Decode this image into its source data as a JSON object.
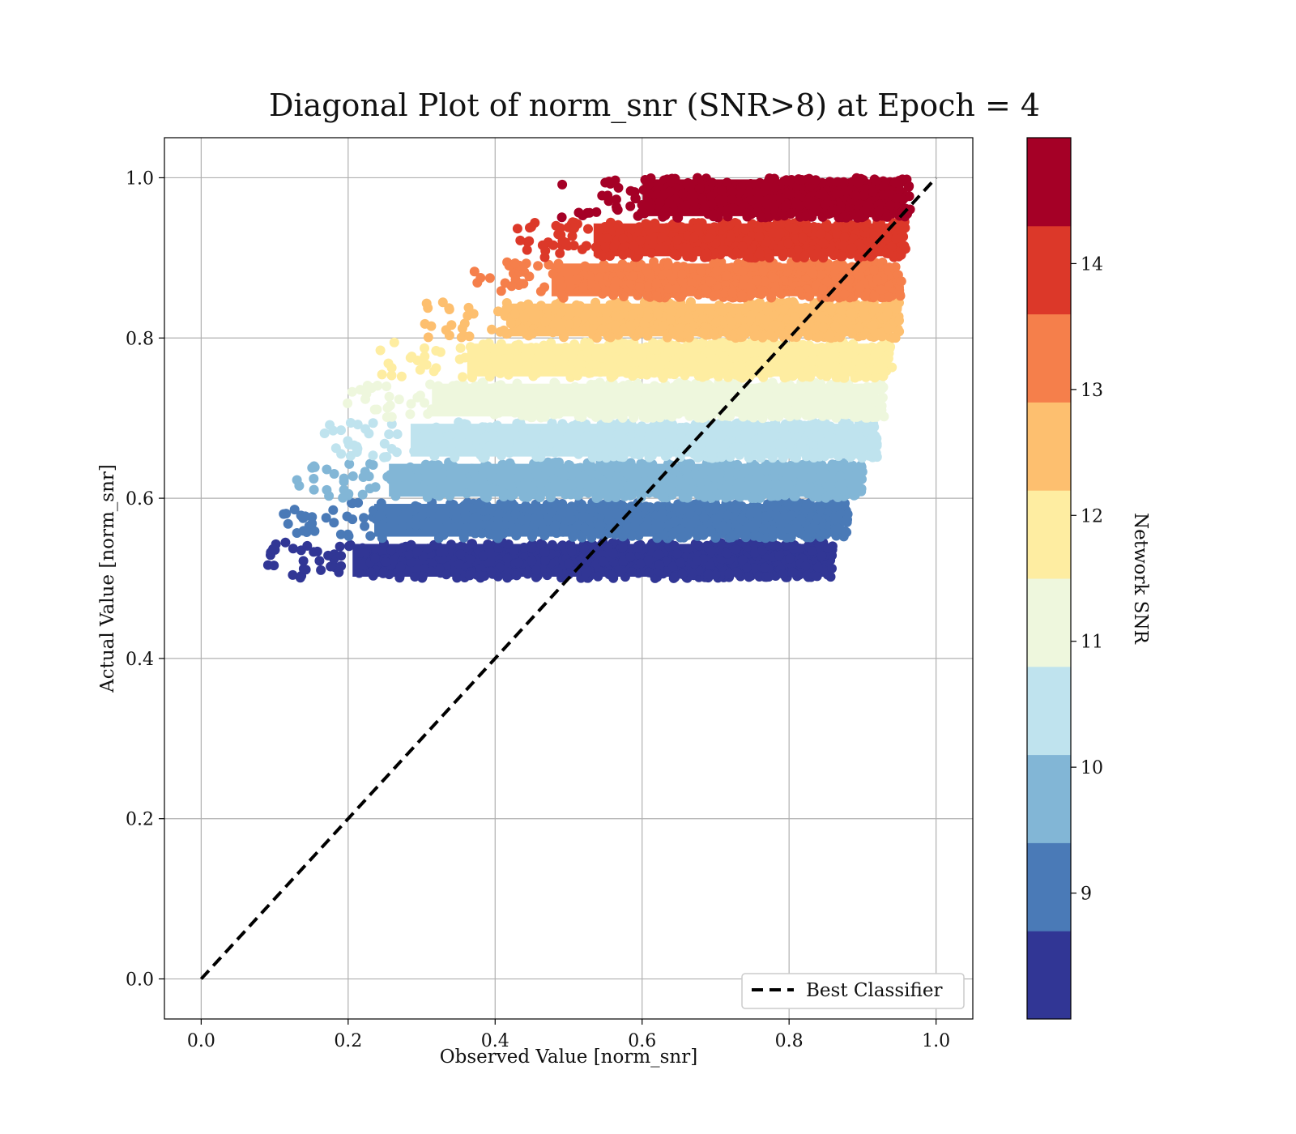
{
  "chart_data": {
    "type": "scatter",
    "title": "Diagonal Plot of norm_snr (SNR>8) at Epoch = 4",
    "xlabel": "Observed Value [norm_snr]",
    "ylabel": "Actual Value [norm_snr]",
    "xlim": [
      -0.05,
      1.05
    ],
    "ylim": [
      -0.05,
      1.05
    ],
    "x_ticks": [
      "0.0",
      "0.2",
      "0.4",
      "0.6",
      "0.8",
      "1.0"
    ],
    "y_ticks": [
      "0.0",
      "0.2",
      "0.4",
      "0.6",
      "0.8",
      "1.0"
    ],
    "grid": true,
    "legend": {
      "placement": "lower-right",
      "entries": [
        "Best Classifier"
      ]
    },
    "reference_line": {
      "name": "Best Classifier",
      "style": "dashed",
      "color": "#000000",
      "from": [
        0.0,
        0.0
      ],
      "to": [
        1.0,
        1.0
      ]
    },
    "colorbar": {
      "label": "Network SNR",
      "range": [
        8,
        15
      ],
      "tick_labels": [
        "9",
        "10",
        "11",
        "12",
        "13",
        "14"
      ],
      "colormap": "RdYlBu_r",
      "colors": [
        "#313695",
        "#4a7ab7",
        "#82b6d6",
        "#bfe3ee",
        "#eef7dd",
        "#feeda1",
        "#fdbf6f",
        "#f57f4b",
        "#dc3829",
        "#a50026"
      ]
    },
    "bands": [
      {
        "y_range": [
          0.5,
          0.545
        ],
        "x_range": [
          0.14,
          0.86
        ],
        "color": "#313695"
      },
      {
        "y_range": [
          0.55,
          0.595
        ],
        "x_range": [
          0.17,
          0.88
        ],
        "color": "#4a7ab7"
      },
      {
        "y_range": [
          0.6,
          0.645
        ],
        "x_range": [
          0.19,
          0.9
        ],
        "color": "#82b6d6"
      },
      {
        "y_range": [
          0.65,
          0.695
        ],
        "x_range": [
          0.22,
          0.92
        ],
        "color": "#bfe3ee"
      },
      {
        "y_range": [
          0.7,
          0.745
        ],
        "x_range": [
          0.25,
          0.93
        ],
        "color": "#eef7dd"
      },
      {
        "y_range": [
          0.75,
          0.795
        ],
        "x_range": [
          0.3,
          0.94
        ],
        "color": "#feeda1"
      },
      {
        "y_range": [
          0.8,
          0.845
        ],
        "x_range": [
          0.36,
          0.95
        ],
        "color": "#fdbf6f"
      },
      {
        "y_range": [
          0.85,
          0.895
        ],
        "x_range": [
          0.42,
          0.955
        ],
        "color": "#f57f4b"
      },
      {
        "y_range": [
          0.9,
          0.945
        ],
        "x_range": [
          0.48,
          0.96
        ],
        "color": "#dc3829"
      },
      {
        "y_range": [
          0.95,
          1.0
        ],
        "x_range": [
          0.55,
          0.965
        ],
        "color": "#a50026"
      }
    ]
  }
}
